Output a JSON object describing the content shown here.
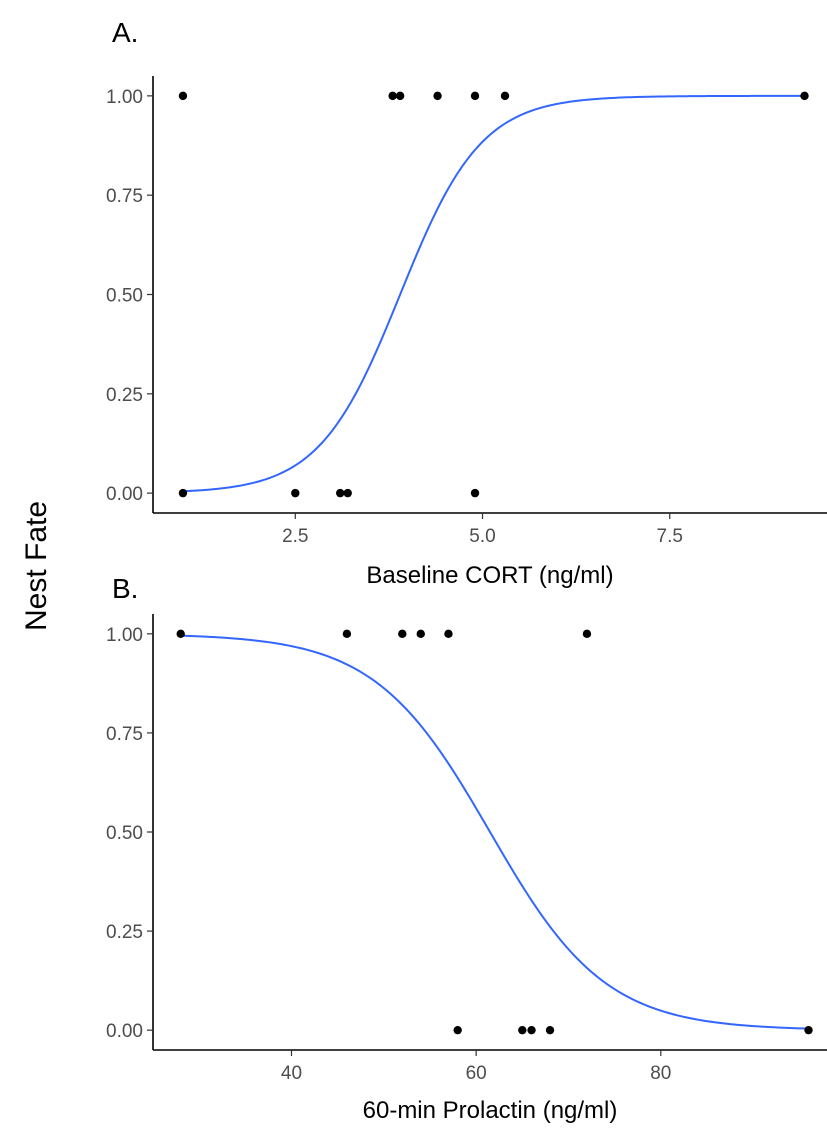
{
  "shared_ylabel": "Nest Fate",
  "chart_data": [
    {
      "type": "scatter",
      "panel_label": "A.",
      "xlabel": "Baseline CORT (ng/ml)",
      "ylabel": "",
      "xlim": [
        0.6,
        9.6
      ],
      "ylim": [
        -0.05,
        1.05
      ],
      "x_ticks": [
        2.5,
        5.0,
        7.5
      ],
      "x_tick_labels": [
        "2.5",
        "5.0",
        "7.5"
      ],
      "y_ticks": [
        0,
        0.25,
        0.5,
        0.75,
        1.0
      ],
      "y_tick_labels": [
        "0.00",
        "0.25",
        "0.50",
        "0.75",
        "1.00"
      ],
      "grid": false,
      "points": [
        {
          "x": 1.0,
          "y": 1
        },
        {
          "x": 3.8,
          "y": 1
        },
        {
          "x": 3.9,
          "y": 1
        },
        {
          "x": 4.4,
          "y": 1
        },
        {
          "x": 4.9,
          "y": 1
        },
        {
          "x": 5.3,
          "y": 1
        },
        {
          "x": 9.3,
          "y": 1
        },
        {
          "x": 1.0,
          "y": 0
        },
        {
          "x": 2.5,
          "y": 0
        },
        {
          "x": 3.1,
          "y": 0
        },
        {
          "x": 3.2,
          "y": 0
        },
        {
          "x": 4.9,
          "y": 0
        }
      ],
      "fit": {
        "model": "logistic",
        "x0": 3.9,
        "k": 1.85,
        "x_range": [
          1.0,
          9.3
        ],
        "color": "#3366ff"
      }
    },
    {
      "type": "scatter",
      "panel_label": "B.",
      "xlabel": "60-min Prolactin (ng/ml)",
      "ylabel": "",
      "xlim": [
        25,
        98
      ],
      "ylim": [
        -0.05,
        1.05
      ],
      "x_ticks": [
        40,
        60,
        80
      ],
      "x_tick_labels": [
        "40",
        "60",
        "80"
      ],
      "y_ticks": [
        0,
        0.25,
        0.5,
        0.75,
        1.0
      ],
      "y_tick_labels": [
        "0.00",
        "0.25",
        "0.50",
        "0.75",
        "1.00"
      ],
      "grid": false,
      "points": [
        {
          "x": 28,
          "y": 1
        },
        {
          "x": 46,
          "y": 1
        },
        {
          "x": 52,
          "y": 1
        },
        {
          "x": 54,
          "y": 1
        },
        {
          "x": 57,
          "y": 1
        },
        {
          "x": 72,
          "y": 1
        },
        {
          "x": 58,
          "y": 0
        },
        {
          "x": 65,
          "y": 0
        },
        {
          "x": 66,
          "y": 0
        },
        {
          "x": 68,
          "y": 0
        },
        {
          "x": 96,
          "y": 0
        }
      ],
      "fit": {
        "model": "logistic",
        "x0": 61.5,
        "k": -0.16,
        "x_range": [
          28,
          96
        ],
        "color": "#3366ff"
      }
    }
  ]
}
